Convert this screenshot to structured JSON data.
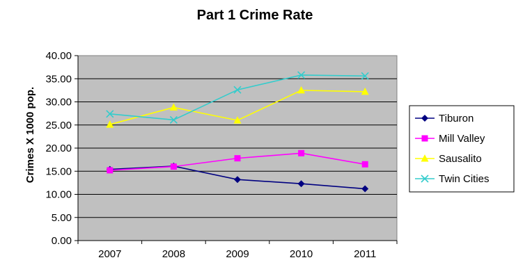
{
  "chart_data": {
    "type": "line",
    "title": "Part 1 Crime Rate",
    "xlabel": "",
    "ylabel": "Crimes X 1000 pop.",
    "categories": [
      "2007",
      "2008",
      "2009",
      "2010",
      "2011"
    ],
    "ylim": [
      0,
      40
    ],
    "yticks": [
      "0.00",
      "5.00",
      "10.00",
      "15.00",
      "20.00",
      "25.00",
      "30.00",
      "35.00",
      "40.00"
    ],
    "grid": true,
    "plot_background": "#c0c0c0",
    "legend_position": "right",
    "series": [
      {
        "name": "Tiburon",
        "color": "#000080",
        "marker": "diamond",
        "values": [
          15.4,
          16.1,
          13.2,
          12.3,
          11.2
        ]
      },
      {
        "name": "Mill Valley",
        "color": "#ff00ff",
        "marker": "square",
        "values": [
          15.2,
          16.0,
          17.8,
          18.9,
          16.5
        ]
      },
      {
        "name": "Sausalito",
        "color": "#ffff00",
        "marker": "triangle",
        "values": [
          25.1,
          28.8,
          26.0,
          32.5,
          32.2
        ]
      },
      {
        "name": "Twin Cities",
        "color": "#33cccc",
        "marker": "x",
        "values": [
          27.4,
          26.1,
          32.6,
          35.8,
          35.6
        ]
      }
    ]
  }
}
